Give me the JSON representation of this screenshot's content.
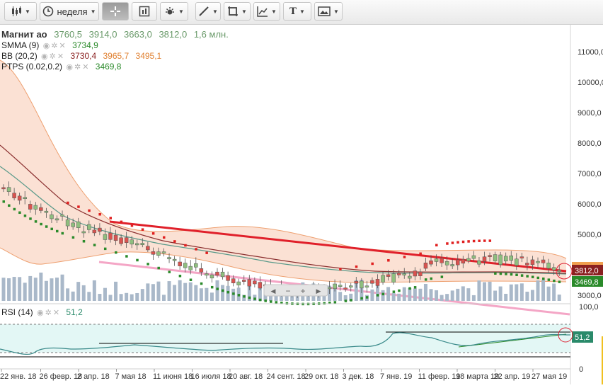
{
  "toolbar": {
    "period_label": "неделя",
    "text_tool_label": "T"
  },
  "legend": {
    "instrument": {
      "name": "Магнит ао",
      "open": "3760,5",
      "high": "3914,0",
      "low": "3663,0",
      "close": "3812,0",
      "volume": "1,6 млн."
    },
    "smma": {
      "name": "SMMA (9)",
      "value": "3734,9"
    },
    "bb": {
      "name": "BB (20,2)",
      "mid": "3730,4",
      "upper": "3965,7",
      "lower": "3495,1"
    },
    "ptps": {
      "name": "PTPS (0.02,0.2)",
      "value": "3469,8"
    }
  },
  "rsi": {
    "name": "RSI (14)",
    "value": "51,2",
    "badge": "51,2",
    "levels": [
      "100,0",
      "50",
      "0"
    ]
  },
  "price_axis": {
    "ticks": [
      "11000,0",
      "10000,0",
      "9000,0",
      "8000,0",
      "7000,0",
      "6000,0",
      "5000,0",
      "3000,0"
    ],
    "badges": {
      "close": "3812,0",
      "ptps": "3469,8"
    }
  },
  "time_axis": {
    "labels": [
      "22 янв. 18",
      "26 февр. 18",
      "2 апр. 18",
      "7 мая 18",
      "11 июня 18",
      "16 июля 18",
      "20 авг. 18",
      "24 сент. 18",
      "29 окт. 18",
      "3 дек. 18",
      "7 янв. 19",
      "11 февр. 19",
      "18 марта 19",
      "22 апр. 19",
      "27 мая 19"
    ]
  },
  "scroll_controls": {
    "left": "◀",
    "minus": "−",
    "plus": "+",
    "right": "▶"
  },
  "colors": {
    "up_candle": "#8fbf7f",
    "down_candle": "#d9534f",
    "smma": "#5a9a8a",
    "bb_band": "#f0a070",
    "trend_red": "#e0202a",
    "trend_pink": "#f4a6c6",
    "ptps_up": "#2a8a2a",
    "ptps_down": "#e02020",
    "volume": "#a9b8c9",
    "rsi_line": "#3a8a8a",
    "rsi_zone": "#e3f7f5"
  },
  "chart_data": {
    "type": "line",
    "title": "Магнит ао",
    "x": [
      "22 янв. 18",
      "26 февр. 18",
      "2 апр. 18",
      "7 мая 18",
      "11 июня 18",
      "16 июля 18",
      "20 авг. 18",
      "24 сент. 18",
      "29 окт. 18",
      "3 дек. 18",
      "7 янв. 19",
      "11 февр. 19",
      "18 марта 19",
      "22 апр. 19",
      "27 мая 19"
    ],
    "series": [
      {
        "name": "Магнит ао",
        "values": [
          7100,
          5700,
          5000,
          4850,
          4950,
          4600,
          4200,
          4000,
          3700,
          3700,
          4100,
          3900,
          3850,
          3900,
          3812
        ]
      },
      {
        "name": "SMMA (9)",
        "values": [
          7000,
          6200,
          5500,
          5100,
          4950,
          4750,
          4400,
          4150,
          3900,
          3800,
          3900,
          3880,
          3850,
          3830,
          3735
        ]
      }
    ],
    "ylim": [
      2100,
      11700
    ],
    "y_ticks": [
      3000,
      5000,
      6000,
      7000,
      8000,
      9000,
      10000,
      11000
    ],
    "rsi": {
      "name": "RSI (14)",
      "value": 51.2,
      "ylim": [
        0,
        100
      ]
    },
    "grid": false,
    "legend": "top-left"
  }
}
